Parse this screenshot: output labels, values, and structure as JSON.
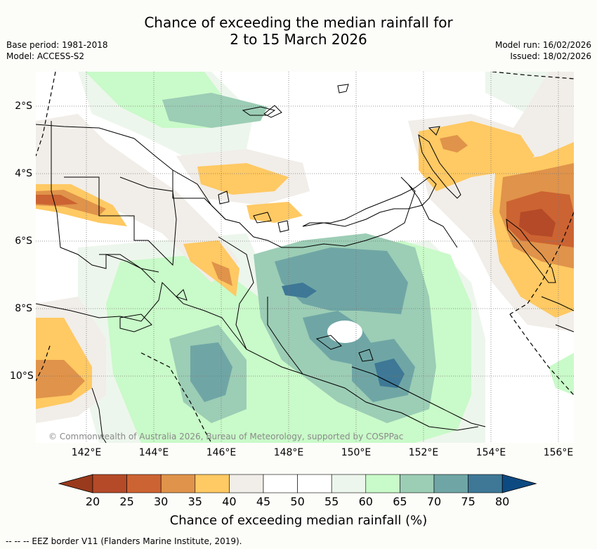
{
  "title": {
    "line1": "Chance of exceeding the median rainfall for",
    "line2": "2 to 15 March 2026"
  },
  "meta": {
    "base_period": "Base period: 1981-2018",
    "model": "Model: ACCESS-S2",
    "model_run": "Model run: 16/02/2026",
    "issued": "Issued: 18/02/2026"
  },
  "axes": {
    "x_ticks": [
      "142°E",
      "144°E",
      "146°E",
      "148°E",
      "150°E",
      "152°E",
      "154°E",
      "156°E"
    ],
    "y_ticks": [
      "2°S",
      "4°S",
      "6°S",
      "8°S",
      "10°S"
    ]
  },
  "copyright": "© Commonwealth of Australia 2026, Bureau of Meteorology, supported by COSPPac",
  "colorbar": {
    "title": "Chance of exceeding median rainfall (%)",
    "ticks": [
      "20",
      "25",
      "30",
      "35",
      "40",
      "45",
      "50",
      "55",
      "60",
      "65",
      "70",
      "75",
      "80"
    ],
    "colors": [
      "#9a3a1c",
      "#b44a28",
      "#cc6332",
      "#e0934a",
      "#ffc963",
      "#f1ede8",
      "#ffffff",
      "#ffffff",
      "#edf6ec",
      "#c9fac9",
      "#9ccdb5",
      "#6fa6a5",
      "#3e7896",
      "#0e4a82"
    ]
  },
  "legend": {
    "eez": "-- -- -- EEZ border V11 (Flanders Marine Institute, 2019)."
  }
}
